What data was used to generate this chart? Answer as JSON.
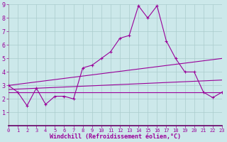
{
  "xlabel": "Windchill (Refroidissement éolien,°C)",
  "bg_color": "#cce8ea",
  "line_color": "#990099",
  "grid_color": "#aacccc",
  "xlim": [
    0,
    23
  ],
  "ylim": [
    0,
    9
  ],
  "xticks": [
    0,
    1,
    2,
    3,
    4,
    5,
    6,
    7,
    8,
    9,
    10,
    11,
    12,
    13,
    14,
    15,
    16,
    17,
    18,
    19,
    20,
    21,
    22,
    23
  ],
  "yticks": [
    1,
    2,
    3,
    4,
    5,
    6,
    7,
    8,
    9
  ],
  "series1_x": [
    0,
    1,
    2,
    3,
    4,
    5,
    6,
    7,
    8,
    9,
    10,
    11,
    12,
    13,
    14,
    15,
    16,
    17,
    18,
    19,
    20,
    21,
    22,
    23
  ],
  "series1_y": [
    3.0,
    2.5,
    1.5,
    2.8,
    1.6,
    2.2,
    2.2,
    2.0,
    4.3,
    4.5,
    5.0,
    5.5,
    6.5,
    6.7,
    8.9,
    8.0,
    8.9,
    6.3,
    5.0,
    4.0,
    4.0,
    2.5,
    2.1,
    2.5
  ],
  "series2_x": [
    0,
    23
  ],
  "series2_y": [
    2.5,
    2.5
  ],
  "series3_x": [
    0,
    23
  ],
  "series3_y": [
    2.7,
    3.4
  ],
  "series4_x": [
    0,
    23
  ],
  "series4_y": [
    3.0,
    5.0
  ],
  "xlabel_fontsize": 6.0,
  "tick_fontsize_x": 5.0,
  "tick_fontsize_y": 6.0,
  "linewidth": 0.8,
  "marker_size": 3.0
}
